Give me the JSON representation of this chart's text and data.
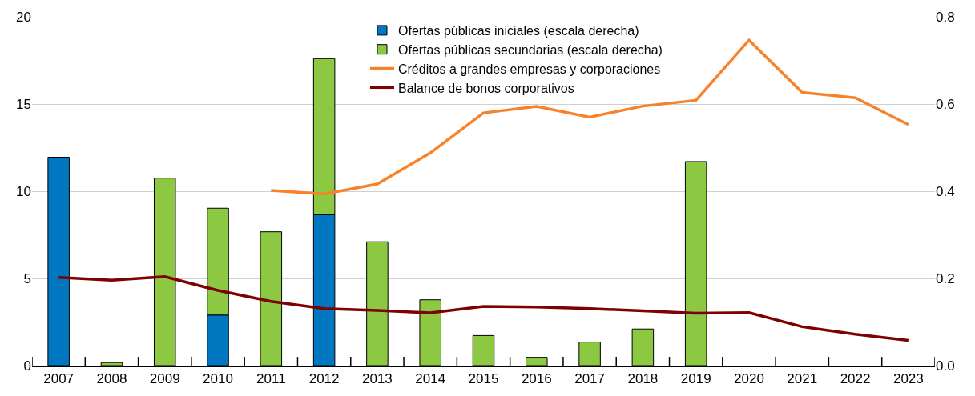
{
  "chart_data": {
    "type": "bar",
    "stacked": true,
    "categories": [
      "2007",
      "2008",
      "2009",
      "2010",
      "2011",
      "2012",
      "2013",
      "2014",
      "2015",
      "2016",
      "2017",
      "2018",
      "2019",
      "2020",
      "2021",
      "2022",
      "2023"
    ],
    "series": [
      {
        "name": "Ofertas públicas iniciales (escala derecha)",
        "axis": "y2",
        "color": "#0077c0",
        "values": [
          0.478,
          null,
          null,
          0.116,
          null,
          0.346,
          null,
          null,
          null,
          null,
          null,
          null,
          null,
          null,
          null,
          null,
          null
        ]
      },
      {
        "name": "Ofertas públicas secundarias (escala derecha)",
        "axis": "y2",
        "color": "#8cc841",
        "values": [
          null,
          0.007,
          0.43,
          0.245,
          0.307,
          0.358,
          0.284,
          0.151,
          0.069,
          0.019,
          0.054,
          0.084,
          0.468,
          null,
          null,
          null,
          null
        ]
      },
      {
        "name": "Créditos a grandes empresas y corporaciones",
        "type": "line",
        "color": "#f7822a",
        "values": [
          null,
          null,
          null,
          null,
          10.05,
          9.84,
          10.41,
          12.2,
          14.49,
          14.86,
          14.25,
          14.88,
          15.21,
          18.66,
          15.66,
          15.36,
          13.82
        ]
      },
      {
        "name": "Balance de bonos corporativos",
        "type": "line",
        "color": "#7f0000",
        "values": [
          5.06,
          4.9,
          5.1,
          4.31,
          3.68,
          3.27,
          3.16,
          3.03,
          3.39,
          3.36,
          3.27,
          3.14,
          3.0,
          3.04,
          2.23,
          1.8,
          1.45
        ]
      }
    ],
    "ylim": [
      0,
      20
    ],
    "yticks": [
      0,
      5,
      10,
      15,
      20
    ],
    "y2lim": [
      0,
      0.8
    ],
    "y2ticks": [
      {
        "value": 0,
        "label": "0.0"
      },
      {
        "value": 0.2,
        "label": "0.2"
      },
      {
        "value": 0.4,
        "label": "0.4"
      },
      {
        "value": 0.6,
        "label": "0.6"
      },
      {
        "value": 0.8,
        "label": "0.8"
      }
    ],
    "grid": "y",
    "legend": "top",
    "line_style": "solid",
    "marker": "none"
  }
}
